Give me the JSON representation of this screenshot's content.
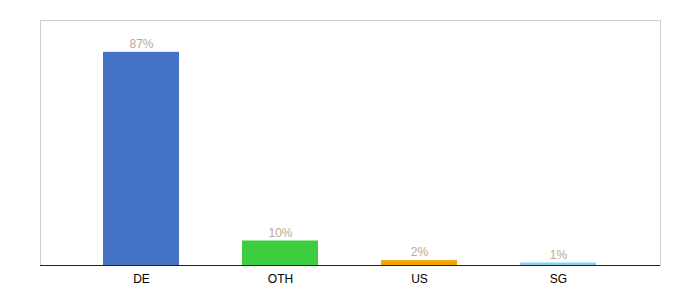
{
  "chart_data": {
    "type": "bar",
    "categories": [
      "DE",
      "OTH",
      "US",
      "SG"
    ],
    "values": [
      87,
      10,
      2,
      1
    ],
    "value_labels": [
      "87%",
      "10%",
      "2%",
      "1%"
    ],
    "colors": [
      "#4472c4",
      "#3dcc3d",
      "#f0a500",
      "#87ceeb"
    ],
    "ylim": [
      0,
      100
    ],
    "data_labels": true,
    "tick_labels": "x",
    "grid": false
  }
}
